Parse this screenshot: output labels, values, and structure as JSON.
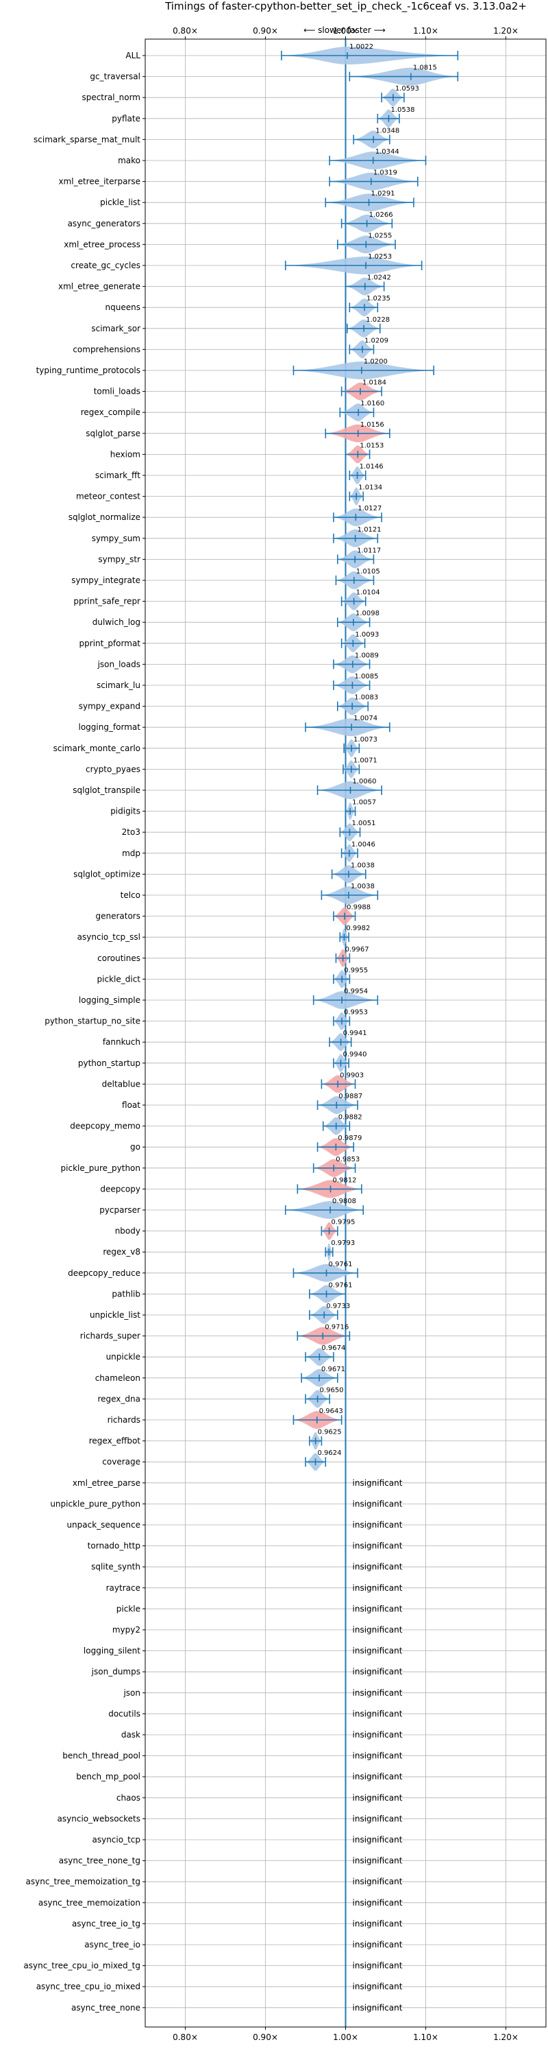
{
  "chart_data": {
    "type": "violin",
    "title": "Timings of faster-cpython-better_set_ip_check_-1c6ceaf vs. 3.13.0a2+",
    "axis_hint": "⟵ slower   faster ⟶",
    "x_ticks": [
      "0.80×",
      "0.90×",
      "1.00×",
      "1.10×",
      "1.20×"
    ],
    "x_tick_values": [
      0.8,
      0.9,
      1.0,
      1.1,
      1.2
    ],
    "xlim": [
      0.75,
      1.25
    ],
    "grid": true,
    "insignificant_label": "insignificant",
    "colors": {
      "faster": "#a8c8e8",
      "slower": "#f4a6a8",
      "line": "#1f77b4"
    },
    "benchmarks": [
      {
        "name": "ALL",
        "value": 1.0022,
        "label": "1.0022",
        "lo": 0.92,
        "hi": 1.14,
        "status": "faster"
      },
      {
        "name": "gc_traversal",
        "value": 1.0815,
        "label": "1.0815",
        "lo": 1.005,
        "hi": 1.14,
        "status": "faster"
      },
      {
        "name": "spectral_norm",
        "value": 1.0593,
        "label": "1.0593",
        "lo": 1.045,
        "hi": 1.073,
        "status": "faster"
      },
      {
        "name": "pyflate",
        "value": 1.0538,
        "label": "1.0538",
        "lo": 1.04,
        "hi": 1.067,
        "status": "faster"
      },
      {
        "name": "scimark_sparse_mat_mult",
        "value": 1.0348,
        "label": "1.0348",
        "lo": 1.01,
        "hi": 1.055,
        "status": "faster"
      },
      {
        "name": "mako",
        "value": 1.0344,
        "label": "1.0344",
        "lo": 0.98,
        "hi": 1.1,
        "status": "faster"
      },
      {
        "name": "xml_etree_iterparse",
        "value": 1.0319,
        "label": "1.0319",
        "lo": 0.98,
        "hi": 1.09,
        "status": "faster"
      },
      {
        "name": "pickle_list",
        "value": 1.0291,
        "label": "1.0291",
        "lo": 0.975,
        "hi": 1.085,
        "status": "faster"
      },
      {
        "name": "async_generators",
        "value": 1.0266,
        "label": "1.0266",
        "lo": 0.995,
        "hi": 1.058,
        "status": "faster"
      },
      {
        "name": "xml_etree_process",
        "value": 1.0255,
        "label": "1.0255",
        "lo": 0.99,
        "hi": 1.062,
        "status": "faster"
      },
      {
        "name": "create_gc_cycles",
        "value": 1.0253,
        "label": "1.0253",
        "lo": 0.925,
        "hi": 1.095,
        "status": "faster"
      },
      {
        "name": "xml_etree_generate",
        "value": 1.0242,
        "label": "1.0242",
        "lo": 1.0,
        "hi": 1.048,
        "status": "faster"
      },
      {
        "name": "nqueens",
        "value": 1.0235,
        "label": "1.0235",
        "lo": 1.005,
        "hi": 1.04,
        "status": "faster"
      },
      {
        "name": "scimark_sor",
        "value": 1.0228,
        "label": "1.0228",
        "lo": 1.002,
        "hi": 1.043,
        "status": "faster"
      },
      {
        "name": "comprehensions",
        "value": 1.0209,
        "label": "1.0209",
        "lo": 1.005,
        "hi": 1.035,
        "status": "faster"
      },
      {
        "name": "typing_runtime_protocols",
        "value": 1.02,
        "label": "1.0200",
        "lo": 0.935,
        "hi": 1.11,
        "status": "faster"
      },
      {
        "name": "tomli_loads",
        "value": 1.0184,
        "label": "1.0184",
        "lo": 0.995,
        "hi": 1.045,
        "status": "slower"
      },
      {
        "name": "regex_compile",
        "value": 1.016,
        "label": "1.0160",
        "lo": 0.993,
        "hi": 1.035,
        "status": "faster"
      },
      {
        "name": "sqlglot_parse",
        "value": 1.0156,
        "label": "1.0156",
        "lo": 0.975,
        "hi": 1.055,
        "status": "slower"
      },
      {
        "name": "hexiom",
        "value": 1.0153,
        "label": "1.0153",
        "lo": 1.0,
        "hi": 1.03,
        "status": "slower"
      },
      {
        "name": "scimark_fft",
        "value": 1.0146,
        "label": "1.0146",
        "lo": 1.005,
        "hi": 1.025,
        "status": "faster"
      },
      {
        "name": "meteor_contest",
        "value": 1.0134,
        "label": "1.0134",
        "lo": 1.005,
        "hi": 1.022,
        "status": "faster"
      },
      {
        "name": "sqlglot_normalize",
        "value": 1.0127,
        "label": "1.0127",
        "lo": 0.985,
        "hi": 1.045,
        "status": "faster"
      },
      {
        "name": "sympy_sum",
        "value": 1.0121,
        "label": "1.0121",
        "lo": 0.985,
        "hi": 1.04,
        "status": "faster"
      },
      {
        "name": "sympy_str",
        "value": 1.0117,
        "label": "1.0117",
        "lo": 0.99,
        "hi": 1.035,
        "status": "faster"
      },
      {
        "name": "sympy_integrate",
        "value": 1.0105,
        "label": "1.0105",
        "lo": 0.988,
        "hi": 1.035,
        "status": "faster"
      },
      {
        "name": "pprint_safe_repr",
        "value": 1.0104,
        "label": "1.0104",
        "lo": 0.995,
        "hi": 1.025,
        "status": "faster"
      },
      {
        "name": "dulwich_log",
        "value": 1.0098,
        "label": "1.0098",
        "lo": 0.99,
        "hi": 1.03,
        "status": "faster"
      },
      {
        "name": "pprint_pformat",
        "value": 1.0093,
        "label": "1.0093",
        "lo": 0.995,
        "hi": 1.024,
        "status": "faster"
      },
      {
        "name": "json_loads",
        "value": 1.0089,
        "label": "1.0089",
        "lo": 0.985,
        "hi": 1.03,
        "status": "faster"
      },
      {
        "name": "scimark_lu",
        "value": 1.0085,
        "label": "1.0085",
        "lo": 0.985,
        "hi": 1.03,
        "status": "faster"
      },
      {
        "name": "sympy_expand",
        "value": 1.0083,
        "label": "1.0083",
        "lo": 0.99,
        "hi": 1.028,
        "status": "faster"
      },
      {
        "name": "logging_format",
        "value": 1.0074,
        "label": "1.0074",
        "lo": 0.95,
        "hi": 1.055,
        "status": "faster"
      },
      {
        "name": "scimark_monte_carlo",
        "value": 1.0073,
        "label": "1.0073",
        "lo": 0.998,
        "hi": 1.017,
        "status": "faster"
      },
      {
        "name": "crypto_pyaes",
        "value": 1.0071,
        "label": "1.0071",
        "lo": 0.997,
        "hi": 1.017,
        "status": "faster"
      },
      {
        "name": "sqlglot_transpile",
        "value": 1.006,
        "label": "1.0060",
        "lo": 0.965,
        "hi": 1.045,
        "status": "faster"
      },
      {
        "name": "pidigits",
        "value": 1.0057,
        "label": "1.0057",
        "lo": 1.0,
        "hi": 1.012,
        "status": "faster"
      },
      {
        "name": "2to3",
        "value": 1.0051,
        "label": "1.0051",
        "lo": 0.993,
        "hi": 1.018,
        "status": "faster"
      },
      {
        "name": "mdp",
        "value": 1.0046,
        "label": "1.0046",
        "lo": 0.995,
        "hi": 1.015,
        "status": "faster"
      },
      {
        "name": "sqlglot_optimize",
        "value": 1.0038,
        "label": "1.0038",
        "lo": 0.983,
        "hi": 1.025,
        "status": "faster"
      },
      {
        "name": "telco",
        "value": 1.0038,
        "label": "1.0038",
        "lo": 0.97,
        "hi": 1.04,
        "status": "faster"
      },
      {
        "name": "generators",
        "value": 0.9988,
        "label": "0.9988",
        "lo": 0.985,
        "hi": 1.012,
        "status": "slower"
      },
      {
        "name": "asyncio_tcp_ssl",
        "value": 0.9982,
        "label": "0.9982",
        "lo": 0.993,
        "hi": 1.004,
        "status": "faster"
      },
      {
        "name": "coroutines",
        "value": 0.9967,
        "label": "0.9967",
        "lo": 0.988,
        "hi": 1.005,
        "status": "slower"
      },
      {
        "name": "pickle_dict",
        "value": 0.9955,
        "label": "0.9955",
        "lo": 0.985,
        "hi": 1.005,
        "status": "faster"
      },
      {
        "name": "logging_simple",
        "value": 0.9954,
        "label": "0.9954",
        "lo": 0.96,
        "hi": 1.04,
        "status": "faster"
      },
      {
        "name": "python_startup_no_site",
        "value": 0.9953,
        "label": "0.9953",
        "lo": 0.985,
        "hi": 1.005,
        "status": "faster"
      },
      {
        "name": "fannkuch",
        "value": 0.9941,
        "label": "0.9941",
        "lo": 0.98,
        "hi": 1.007,
        "status": "faster"
      },
      {
        "name": "python_startup",
        "value": 0.994,
        "label": "0.9940",
        "lo": 0.985,
        "hi": 1.004,
        "status": "faster"
      },
      {
        "name": "deltablue",
        "value": 0.9903,
        "label": "0.9903",
        "lo": 0.97,
        "hi": 1.012,
        "status": "slower"
      },
      {
        "name": "float",
        "value": 0.9887,
        "label": "0.9887",
        "lo": 0.965,
        "hi": 1.015,
        "status": "faster"
      },
      {
        "name": "deepcopy_memo",
        "value": 0.9882,
        "label": "0.9882",
        "lo": 0.972,
        "hi": 1.005,
        "status": "faster"
      },
      {
        "name": "go",
        "value": 0.9879,
        "label": "0.9879",
        "lo": 0.965,
        "hi": 1.01,
        "status": "slower"
      },
      {
        "name": "pickle_pure_python",
        "value": 0.9853,
        "label": "0.9853",
        "lo": 0.96,
        "hi": 1.012,
        "status": "slower"
      },
      {
        "name": "deepcopy",
        "value": 0.9812,
        "label": "0.9812",
        "lo": 0.94,
        "hi": 1.02,
        "status": "slower"
      },
      {
        "name": "pycparser",
        "value": 0.9808,
        "label": "0.9808",
        "lo": 0.925,
        "hi": 1.022,
        "status": "faster"
      },
      {
        "name": "nbody",
        "value": 0.9795,
        "label": "0.9795",
        "lo": 0.97,
        "hi": 0.99,
        "status": "slower"
      },
      {
        "name": "regex_v8",
        "value": 0.9793,
        "label": "0.9793",
        "lo": 0.975,
        "hi": 0.984,
        "status": "faster"
      },
      {
        "name": "deepcopy_reduce",
        "value": 0.9761,
        "label": "0.9761",
        "lo": 0.935,
        "hi": 1.015,
        "status": "faster"
      },
      {
        "name": "pathlib",
        "value": 0.9761,
        "label": "0.9761",
        "lo": 0.955,
        "hi": 1.0,
        "status": "faster"
      },
      {
        "name": "unpickle_list",
        "value": 0.9733,
        "label": "0.9733",
        "lo": 0.955,
        "hi": 0.99,
        "status": "faster"
      },
      {
        "name": "richards_super",
        "value": 0.9716,
        "label": "0.9716",
        "lo": 0.94,
        "hi": 1.005,
        "status": "slower"
      },
      {
        "name": "unpickle",
        "value": 0.9674,
        "label": "0.9674",
        "lo": 0.95,
        "hi": 0.985,
        "status": "faster"
      },
      {
        "name": "chameleon",
        "value": 0.9671,
        "label": "0.9671",
        "lo": 0.945,
        "hi": 0.99,
        "status": "faster"
      },
      {
        "name": "regex_dna",
        "value": 0.965,
        "label": "0.9650",
        "lo": 0.95,
        "hi": 0.98,
        "status": "faster"
      },
      {
        "name": "richards",
        "value": 0.9643,
        "label": "0.9643",
        "lo": 0.935,
        "hi": 0.995,
        "status": "slower"
      },
      {
        "name": "regex_effbot",
        "value": 0.9625,
        "label": "0.9625",
        "lo": 0.955,
        "hi": 0.97,
        "status": "faster"
      },
      {
        "name": "coverage",
        "value": 0.9624,
        "label": "0.9624",
        "lo": 0.95,
        "hi": 0.975,
        "status": "faster"
      },
      {
        "name": "xml_etree_parse",
        "status": "insignificant"
      },
      {
        "name": "unpickle_pure_python",
        "status": "insignificant"
      },
      {
        "name": "unpack_sequence",
        "status": "insignificant"
      },
      {
        "name": "tornado_http",
        "status": "insignificant"
      },
      {
        "name": "sqlite_synth",
        "status": "insignificant"
      },
      {
        "name": "raytrace",
        "status": "insignificant"
      },
      {
        "name": "pickle",
        "status": "insignificant"
      },
      {
        "name": "mypy2",
        "status": "insignificant"
      },
      {
        "name": "logging_silent",
        "status": "insignificant"
      },
      {
        "name": "json_dumps",
        "status": "insignificant"
      },
      {
        "name": "json",
        "status": "insignificant"
      },
      {
        "name": "docutils",
        "status": "insignificant"
      },
      {
        "name": "dask",
        "status": "insignificant"
      },
      {
        "name": "bench_thread_pool",
        "status": "insignificant"
      },
      {
        "name": "bench_mp_pool",
        "status": "insignificant"
      },
      {
        "name": "chaos",
        "status": "insignificant"
      },
      {
        "name": "asyncio_websockets",
        "status": "insignificant"
      },
      {
        "name": "asyncio_tcp",
        "status": "insignificant"
      },
      {
        "name": "async_tree_none_tg",
        "status": "insignificant"
      },
      {
        "name": "async_tree_memoization_tg",
        "status": "insignificant"
      },
      {
        "name": "async_tree_memoization",
        "status": "insignificant"
      },
      {
        "name": "async_tree_io_tg",
        "status": "insignificant"
      },
      {
        "name": "async_tree_io",
        "status": "insignificant"
      },
      {
        "name": "async_tree_cpu_io_mixed_tg",
        "status": "insignificant"
      },
      {
        "name": "async_tree_cpu_io_mixed",
        "status": "insignificant"
      },
      {
        "name": "async_tree_none",
        "status": "insignificant"
      }
    ]
  }
}
